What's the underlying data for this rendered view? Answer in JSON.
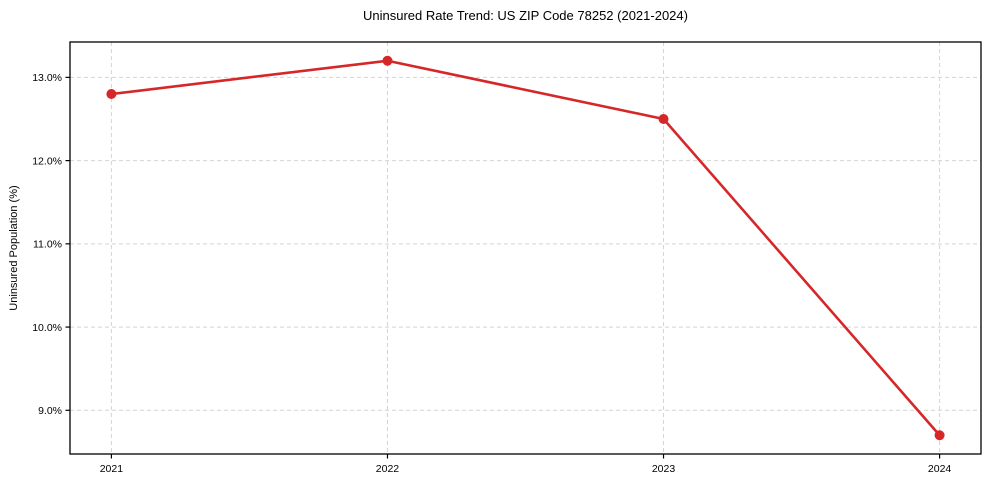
{
  "chart_data": {
    "type": "line",
    "title": "Uninsured Rate Trend: US ZIP Code 78252 (2021-2024)",
    "xlabel": "",
    "ylabel": "Uninsured Population (%)",
    "x": [
      2021,
      2022,
      2023,
      2024
    ],
    "x_tick_labels": [
      "2021",
      "2022",
      "2023",
      "2024"
    ],
    "series": [
      {
        "name": "uninsured-rate",
        "values": [
          12.8,
          13.2,
          12.5,
          8.7
        ]
      }
    ],
    "y_ticks": [
      9.0,
      10.0,
      11.0,
      12.0,
      13.0
    ],
    "y_tick_labels": [
      "9.0%",
      "10.0%",
      "11.0%",
      "12.0%",
      "13.0%"
    ],
    "xlim": [
      2020.85,
      2024.15
    ],
    "ylim": [
      8.475,
      13.425
    ],
    "grid": true,
    "grid_style": "dashed",
    "legend": "none",
    "colors": {
      "line": "#d62728",
      "marker": "#d62728",
      "grid": "#d4d4d4",
      "frame": "#000000",
      "text": "#000000"
    },
    "line_width": 2.6,
    "marker_radius": 5
  }
}
